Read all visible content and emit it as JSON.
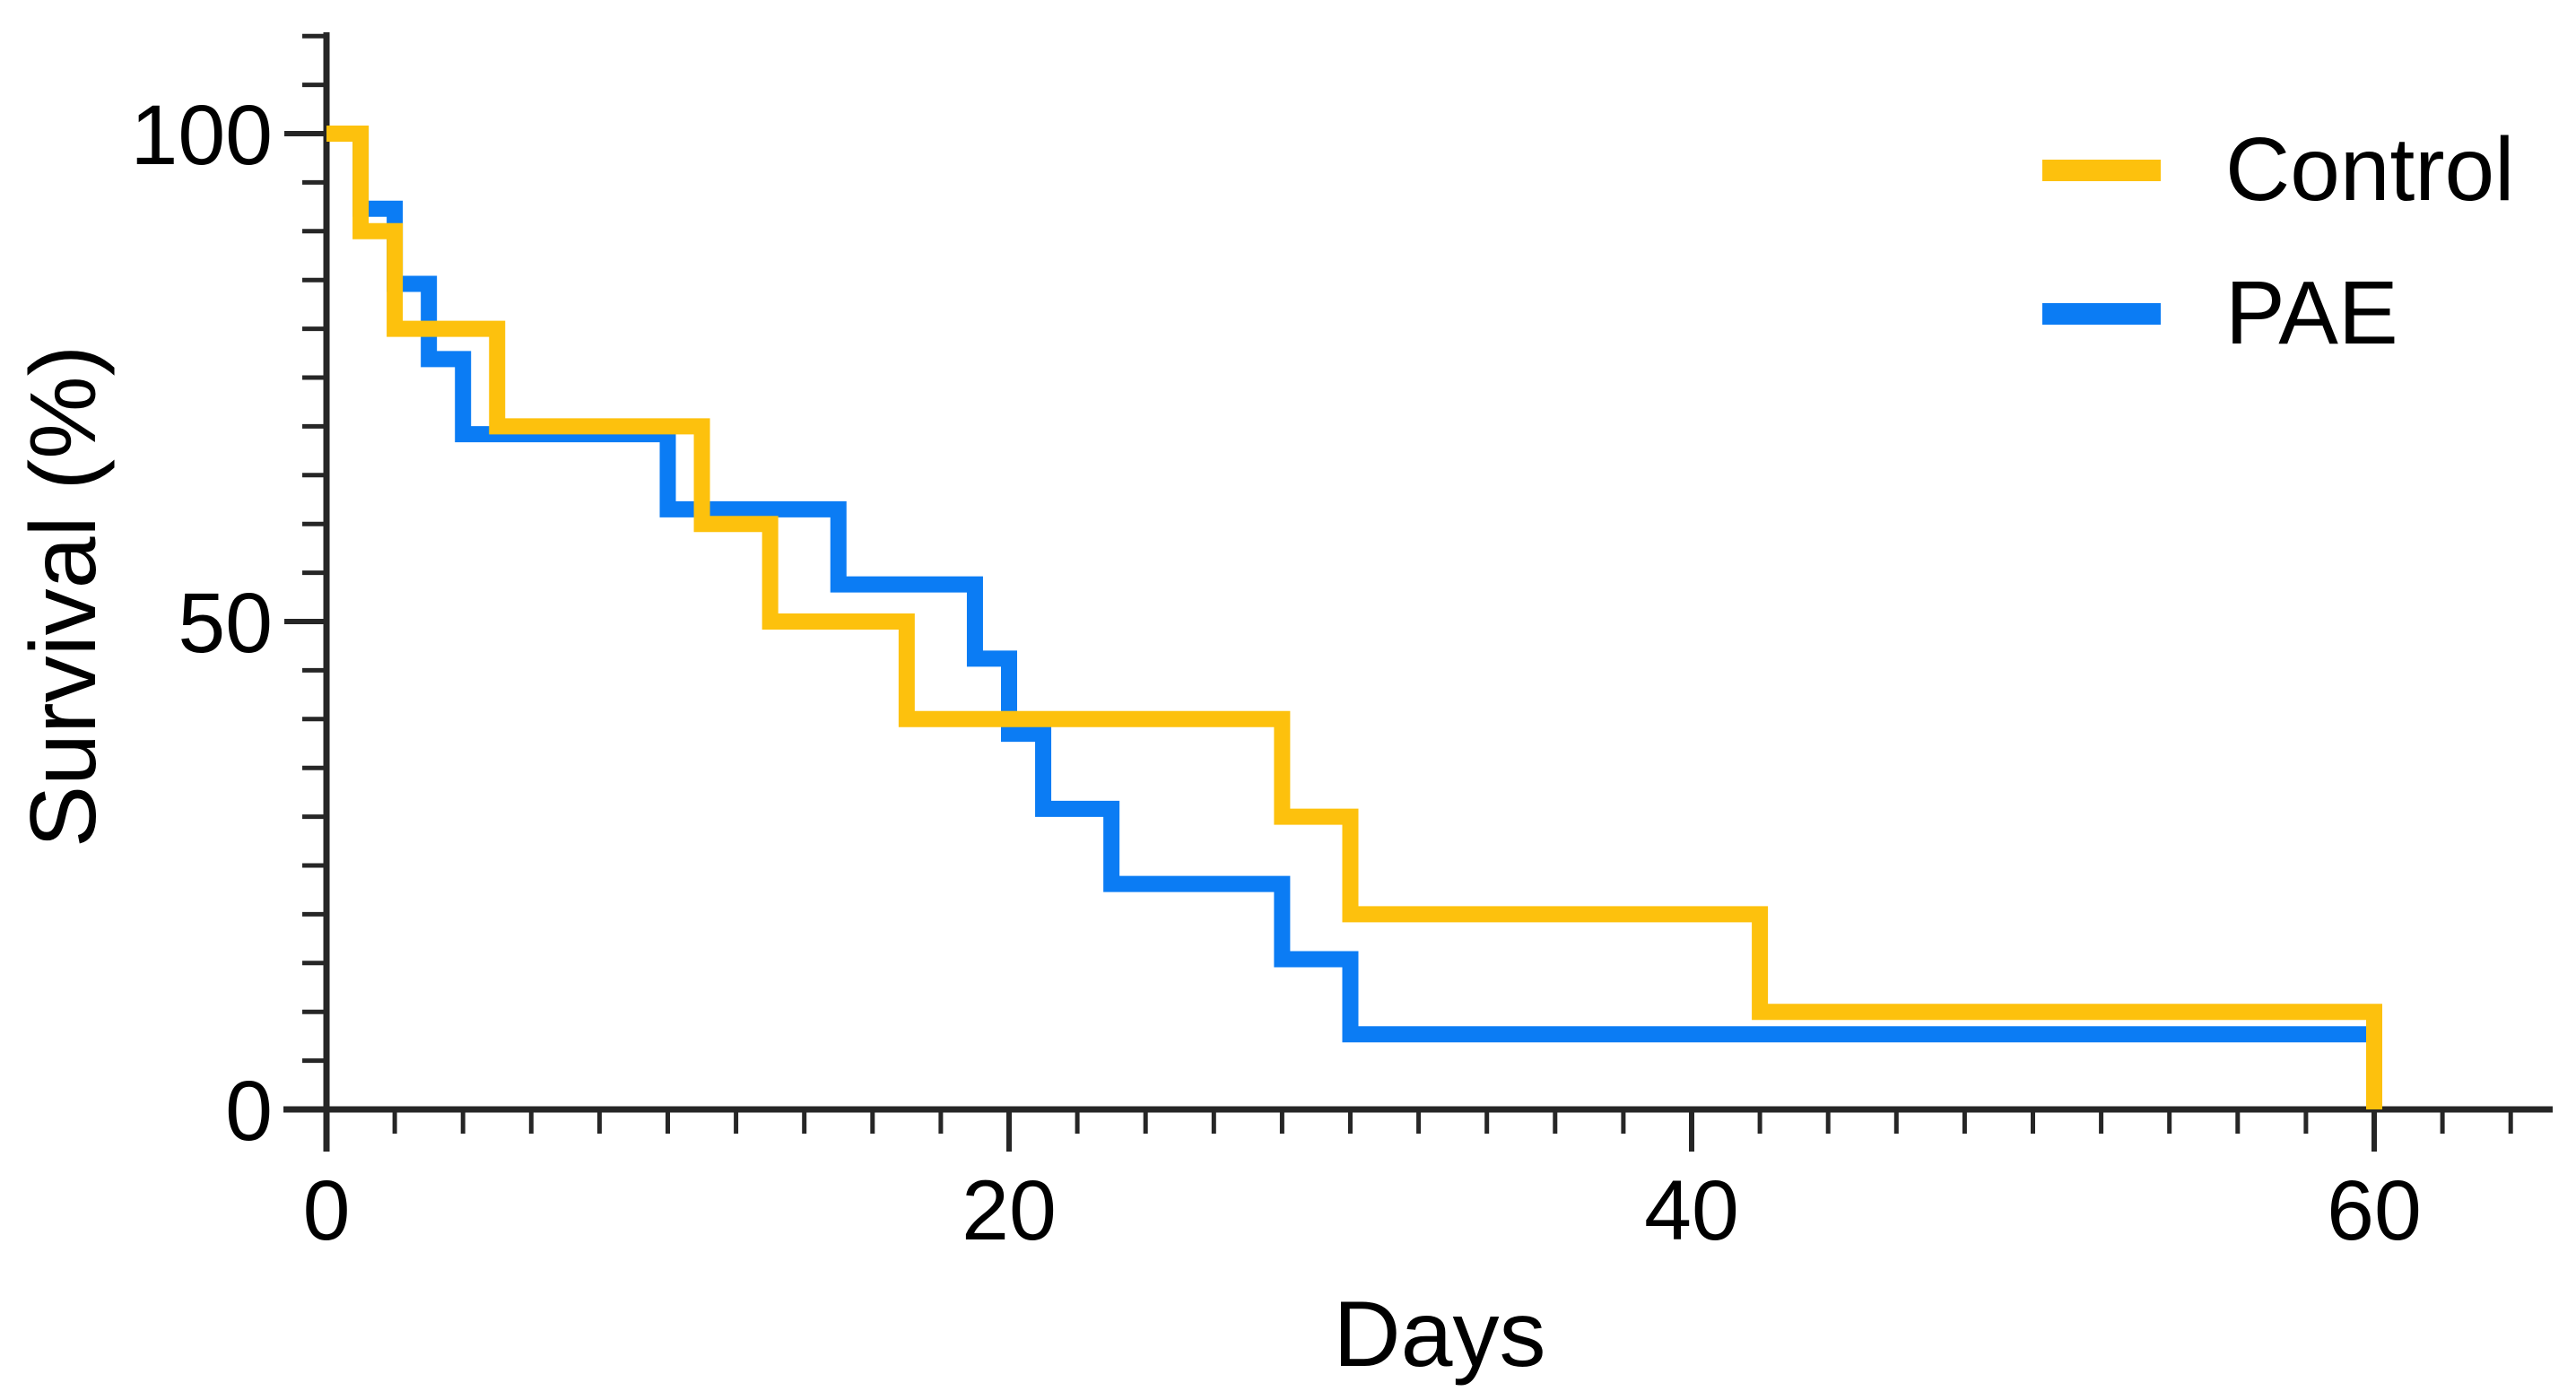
{
  "figure": {
    "background": "#ffffff",
    "text_color": "#000000",
    "axis_color": "#262626"
  },
  "chart_data": {
    "type": "line",
    "subtype": "kaplan-meier-step",
    "title": "",
    "xlabel": "Days",
    "ylabel": "Survival (%)",
    "xlim": [
      0,
      65
    ],
    "ylim": [
      0,
      110
    ],
    "x_major_ticks": [
      0,
      20,
      40,
      60
    ],
    "x_tick_labels": [
      "0",
      "20",
      "40",
      "60"
    ],
    "x_minor_tick_step": 2,
    "y_major_ticks": [
      0,
      50,
      100
    ],
    "y_tick_labels": [
      "0",
      "50",
      "100"
    ],
    "y_minor_tick_step": 5,
    "grid": false,
    "legend_position": "top-right",
    "series": [
      {
        "name": "Control",
        "color": "#FDC10D",
        "start_level": 100,
        "end_day": 60,
        "steps": [
          [
            1,
            90
          ],
          [
            2,
            80
          ],
          [
            5,
            70
          ],
          [
            11,
            60
          ],
          [
            13,
            50
          ],
          [
            17,
            40
          ],
          [
            28,
            30
          ],
          [
            30,
            20
          ],
          [
            42,
            10
          ],
          [
            60,
            0
          ]
        ]
      },
      {
        "name": "PAE",
        "color": "#0B7CF4",
        "start_level": 100,
        "end_day": 60,
        "steps": [
          [
            1,
            92.3
          ],
          [
            2,
            84.6
          ],
          [
            3,
            76.9
          ],
          [
            4,
            69.2
          ],
          [
            10,
            61.5
          ],
          [
            15,
            53.8
          ],
          [
            19,
            46.2
          ],
          [
            20,
            38.5
          ],
          [
            21,
            30.8
          ],
          [
            23,
            23.1
          ],
          [
            28,
            15.4
          ],
          [
            30,
            7.7
          ]
        ]
      }
    ]
  }
}
